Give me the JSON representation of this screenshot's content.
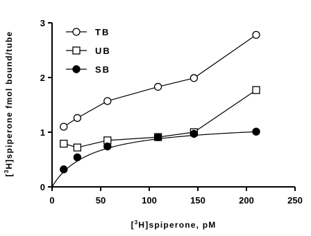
{
  "chart_data": {
    "type": "scatter",
    "xlabel": {
      "pre": "[",
      "sup": "3",
      "post": "H]spiperone, pM"
    },
    "ylabel": {
      "pre": "[",
      "sup": "3",
      "post": "H]spiperone fmol bound/tube"
    },
    "xlim": [
      0,
      250
    ],
    "ylim": [
      0,
      3
    ],
    "xticks": [
      0,
      50,
      100,
      150,
      200,
      250
    ],
    "yticks": [
      0,
      1,
      2,
      3
    ],
    "grid": false,
    "legend_position": "top-left",
    "series": [
      {
        "name": "TB",
        "marker": "open-circle",
        "line": "straight",
        "x": [
          12,
          26,
          57,
          109,
          146,
          210
        ],
        "y": [
          1.1,
          1.26,
          1.57,
          1.83,
          1.99,
          2.78
        ]
      },
      {
        "name": "UB",
        "marker": "open-square",
        "line": "straight",
        "x": [
          12,
          26,
          57,
          109,
          146,
          210
        ],
        "y": [
          0.79,
          0.72,
          0.85,
          0.91,
          1.0,
          1.77
        ]
      },
      {
        "name": "SB",
        "marker": "filled-circle",
        "line": "saturation-curve",
        "x": [
          12,
          26,
          57,
          109,
          146,
          210
        ],
        "y": [
          0.32,
          0.54,
          0.74,
          0.91,
          0.97,
          1.01
        ]
      }
    ]
  }
}
